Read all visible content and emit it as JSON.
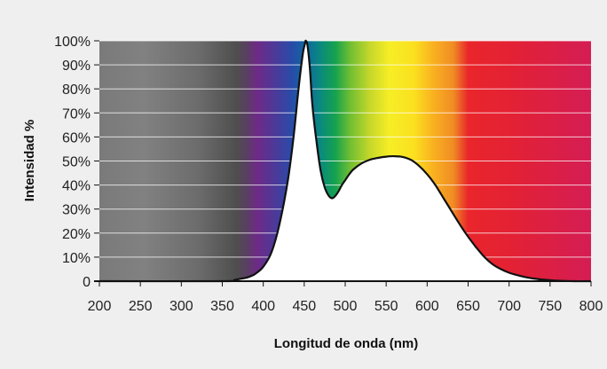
{
  "chart_data": {
    "type": "area",
    "xlabel": "Longitud de onda (nm)",
    "ylabel": "Intensidad %",
    "xlim": [
      200,
      800
    ],
    "ylim": [
      0,
      100
    ],
    "x_ticks": [
      200,
      250,
      300,
      350,
      400,
      450,
      500,
      550,
      600,
      650,
      700,
      750,
      800
    ],
    "y_ticks": [
      0,
      10,
      20,
      30,
      40,
      50,
      60,
      70,
      80,
      90,
      100
    ],
    "y_tick_labels": [
      "0",
      "10%",
      "20%",
      "30%",
      "40%",
      "50%",
      "60%",
      "70%",
      "80%",
      "90%",
      "100%"
    ],
    "grid": "horizontal",
    "background": "visible spectrum (gray below ~380 nm)",
    "series": [
      {
        "x": [
          200,
          350,
          365,
          372,
          380,
          390,
          400,
          410,
          420,
          430,
          437,
          443,
          448,
          451,
          452,
          454,
          457,
          460,
          465,
          470,
          475,
          480,
          484,
          488,
          492,
          496,
          500,
          505,
          510,
          520,
          530,
          540,
          550,
          560,
          570,
          580,
          590,
          600,
          610,
          620,
          630,
          640,
          650,
          660,
          670,
          680,
          690,
          700,
          710,
          720,
          730,
          740,
          750,
          760,
          780,
          800
        ],
        "y": [
          0,
          0,
          0.5,
          1,
          1.5,
          3,
          6,
          12,
          24,
          42,
          60,
          80,
          94,
          99,
          100,
          98,
          88,
          73,
          58,
          46,
          39,
          35.5,
          34.5,
          35.5,
          37.5,
          40,
          42,
          44.5,
          46.5,
          49,
          50.5,
          51.3,
          51.8,
          52,
          51.7,
          50.5,
          48,
          44.5,
          40,
          34.5,
          29,
          23.5,
          18.5,
          14,
          10,
          7,
          5,
          3.5,
          2.5,
          1.7,
          1.1,
          0.7,
          0.4,
          0.2,
          0,
          0
        ]
      }
    ]
  }
}
